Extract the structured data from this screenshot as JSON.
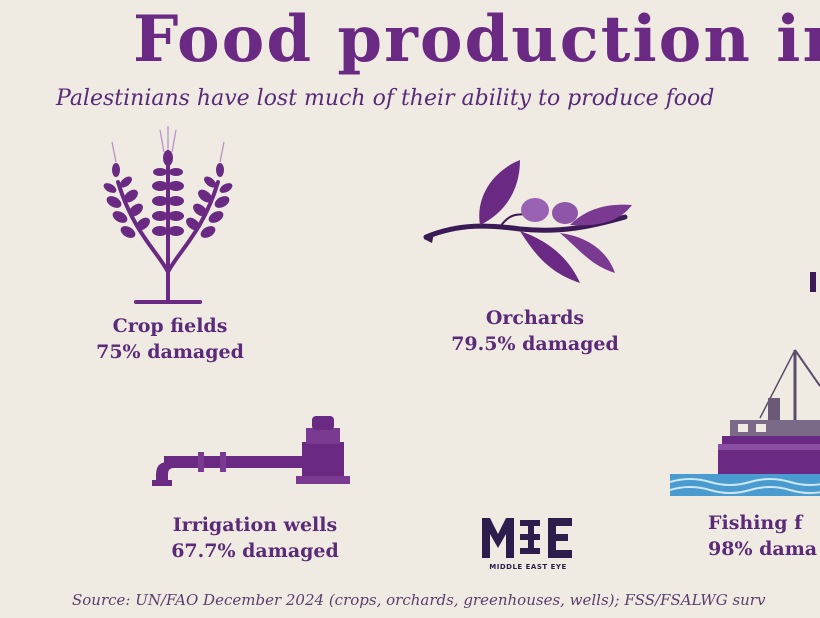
{
  "title": "Food production in",
  "subtitle": "Palestinians have lost much of their ability to produce food",
  "items": [
    {
      "label": "Crop fields",
      "value": "75% damaged",
      "icon": "wheat-icon"
    },
    {
      "label": "Orchards",
      "value": "79.5% damaged",
      "icon": "olive-branch-icon"
    },
    {
      "label": "Irrigation wells",
      "value": "67.7% damaged",
      "icon": "water-pipe-icon"
    },
    {
      "label": "Fishing f",
      "value": "98% dama",
      "icon": "fishing-boat-icon"
    }
  ],
  "logo": {
    "text": "MIDDLE EAST EYE"
  },
  "source": "Source: UN/FAO December 2024 (crops, orchards, greenhouses, wells); FSS/FSALWG surv",
  "colors": {
    "background": "#efebe2",
    "accent": "#6a2a83",
    "water": "#3a8fbf"
  }
}
